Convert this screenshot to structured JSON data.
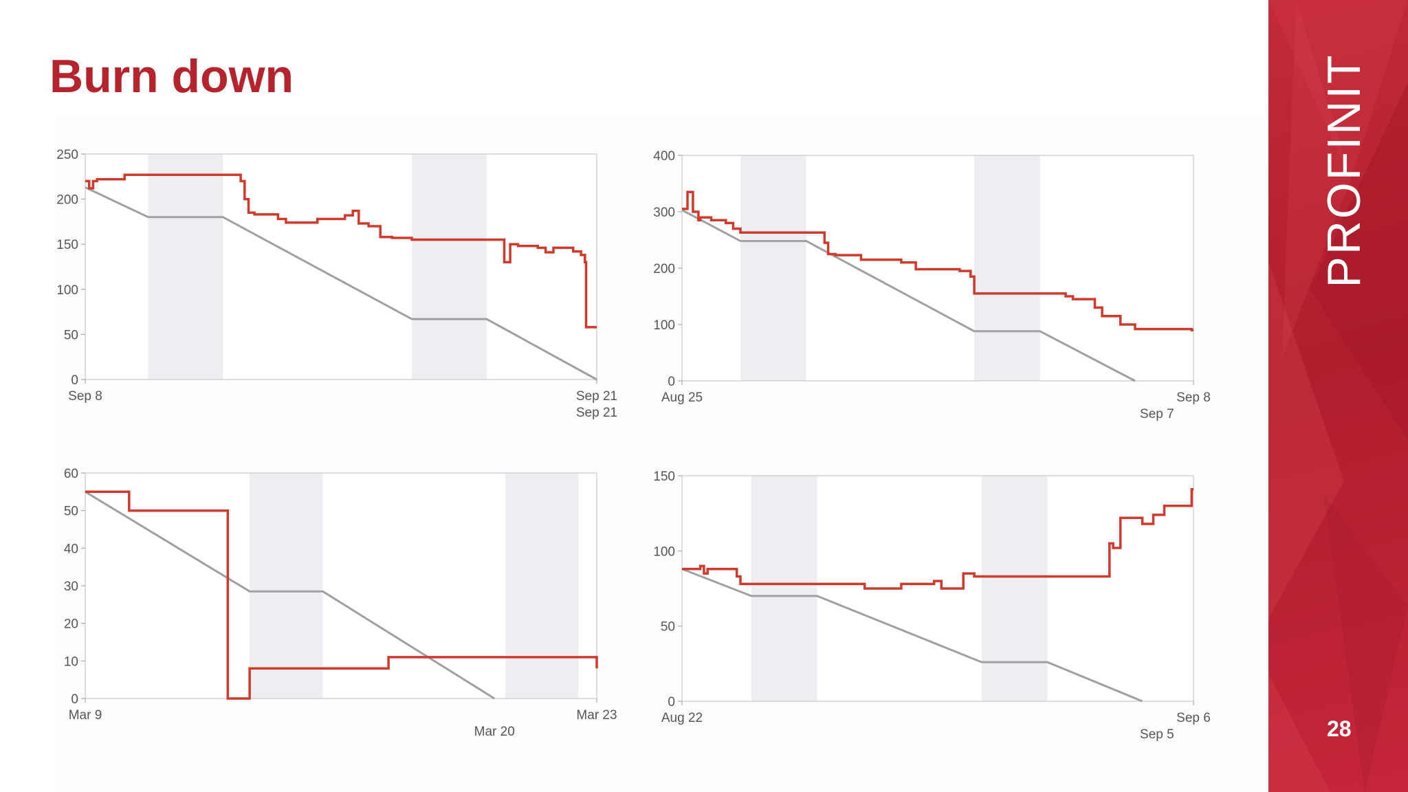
{
  "slide": {
    "title": "Burn down",
    "brand": "PROFINIT",
    "page_number": "28",
    "colors": {
      "accent": "#b5242c",
      "actual": "#d03a2c",
      "ideal": "#a0a0a0",
      "weekend": "#eeedf1",
      "panel": "#c0263a"
    }
  },
  "chart_data": [
    {
      "type": "line",
      "title": "",
      "ylim": [
        0,
        250
      ],
      "yticks": [
        0,
        50,
        100,
        150,
        200,
        250
      ],
      "xlim": [
        0,
        13
      ],
      "xlabels": [
        {
          "x": 0,
          "text": "Sep 8",
          "row": 0
        },
        {
          "x": 13,
          "text": "Sep 21",
          "row": 0
        },
        {
          "x": 13,
          "text": "Sep 21",
          "row": 1
        }
      ],
      "weekends": [
        [
          1.6,
          3.5
        ],
        [
          8.3,
          10.2
        ]
      ],
      "series": [
        {
          "name": "ideal",
          "x": [
            0,
            1.6,
            3.5,
            8.3,
            10.2,
            13
          ],
          "y": [
            213,
            180,
            180,
            67,
            67,
            0
          ]
        },
        {
          "name": "actual",
          "x": [
            0,
            0.1,
            0.2,
            0.3,
            1.0,
            3.9,
            3.95,
            4.05,
            4.15,
            4.3,
            4.9,
            5.1,
            5.6,
            5.9,
            6.6,
            6.8,
            6.95,
            7.2,
            7.5,
            7.8,
            8.3,
            10.6,
            10.65,
            10.8,
            11.0,
            11.5,
            11.7,
            11.9,
            12.4,
            12.6,
            12.7,
            12.73,
            13
          ],
          "y": [
            220,
            212,
            220,
            222,
            227,
            227,
            220,
            200,
            185,
            183,
            178,
            174,
            174,
            178,
            182,
            187,
            173,
            170,
            158,
            157,
            155,
            155,
            130,
            150,
            148,
            146,
            141,
            146,
            142,
            138,
            130,
            58,
            58
          ]
        }
      ]
    },
    {
      "type": "line",
      "title": "",
      "ylim": [
        0,
        400
      ],
      "yticks": [
        0,
        100,
        200,
        300,
        400
      ],
      "xlim": [
        0,
        14
      ],
      "xlabels": [
        {
          "x": 0,
          "text": "Aug 25",
          "row": 0
        },
        {
          "x": 14,
          "text": "Sep 8",
          "row": 0
        },
        {
          "x": 13,
          "text": "Sep 7",
          "row": 1
        }
      ],
      "weekends": [
        [
          1.6,
          3.4
        ],
        [
          8.0,
          9.8
        ]
      ],
      "series": [
        {
          "name": "ideal",
          "x": [
            0,
            1.6,
            3.4,
            8.0,
            9.8,
            12.4
          ],
          "y": [
            303,
            248,
            248,
            88,
            88,
            0
          ]
        },
        {
          "name": "actual",
          "x": [
            0,
            0.15,
            0.3,
            0.45,
            0.5,
            0.8,
            1.2,
            1.4,
            1.6,
            3.8,
            3.9,
            4.0,
            4.2,
            4.9,
            5.7,
            6.0,
            6.4,
            7.0,
            7.6,
            7.9,
            8.0,
            10.2,
            10.5,
            10.7,
            11.1,
            11.3,
            11.5,
            12.0,
            12.4,
            13.95
          ],
          "y": [
            305,
            335,
            300,
            285,
            290,
            285,
            280,
            270,
            263,
            263,
            245,
            225,
            223,
            215,
            215,
            210,
            198,
            198,
            195,
            185,
            155,
            155,
            150,
            145,
            145,
            130,
            115,
            100,
            92,
            90
          ]
        }
      ]
    },
    {
      "type": "line",
      "title": "",
      "ylim": [
        0,
        60
      ],
      "yticks": [
        0,
        10,
        20,
        30,
        40,
        50,
        60
      ],
      "xlim": [
        0,
        14
      ],
      "xlabels": [
        {
          "x": 0,
          "text": "Mar 9",
          "row": 0
        },
        {
          "x": 14,
          "text": "Mar 23",
          "row": 0
        },
        {
          "x": 11.2,
          "text": "Mar 20",
          "row": 1
        }
      ],
      "weekends": [
        [
          4.5,
          6.5
        ],
        [
          11.5,
          13.5
        ]
      ],
      "series": [
        {
          "name": "ideal",
          "x": [
            0,
            4.5,
            6.5,
            11.2
          ],
          "y": [
            55,
            28.5,
            28.5,
            0
          ]
        },
        {
          "name": "actual",
          "x": [
            0,
            1.2,
            3.1,
            3.9,
            4.5,
            8.3,
            9.4,
            14
          ],
          "y": [
            55,
            50,
            50,
            0,
            8,
            11,
            11,
            8
          ]
        }
      ]
    },
    {
      "type": "line",
      "title": "",
      "ylim": [
        0,
        150
      ],
      "yticks": [
        0,
        50,
        100,
        150
      ],
      "xlim": [
        0,
        14
      ],
      "xlabels": [
        {
          "x": 0,
          "text": "Aug 22",
          "row": 0
        },
        {
          "x": 14,
          "text": "Sep 6",
          "row": 0
        },
        {
          "x": 13,
          "text": "Sep 5",
          "row": 1
        }
      ],
      "weekends": [
        [
          1.9,
          3.7
        ],
        [
          8.2,
          10.0
        ]
      ],
      "series": [
        {
          "name": "ideal",
          "x": [
            0,
            1.9,
            3.7,
            8.2,
            10.0,
            12.6
          ],
          "y": [
            88,
            70,
            70,
            26,
            26,
            0
          ]
        },
        {
          "name": "actual",
          "x": [
            0,
            0.5,
            0.6,
            0.7,
            1.0,
            1.5,
            1.6,
            4.0,
            5.0,
            6.0,
            6.9,
            7.1,
            7.7,
            8.0,
            11.7,
            11.8,
            12.0,
            12.6,
            12.9,
            13.2,
            13.95
          ],
          "y": [
            88,
            90,
            85,
            88,
            88,
            83,
            78,
            78,
            75,
            78,
            80,
            75,
            85,
            83,
            105,
            102,
            122,
            118,
            124,
            130,
            141
          ]
        }
      ]
    }
  ]
}
